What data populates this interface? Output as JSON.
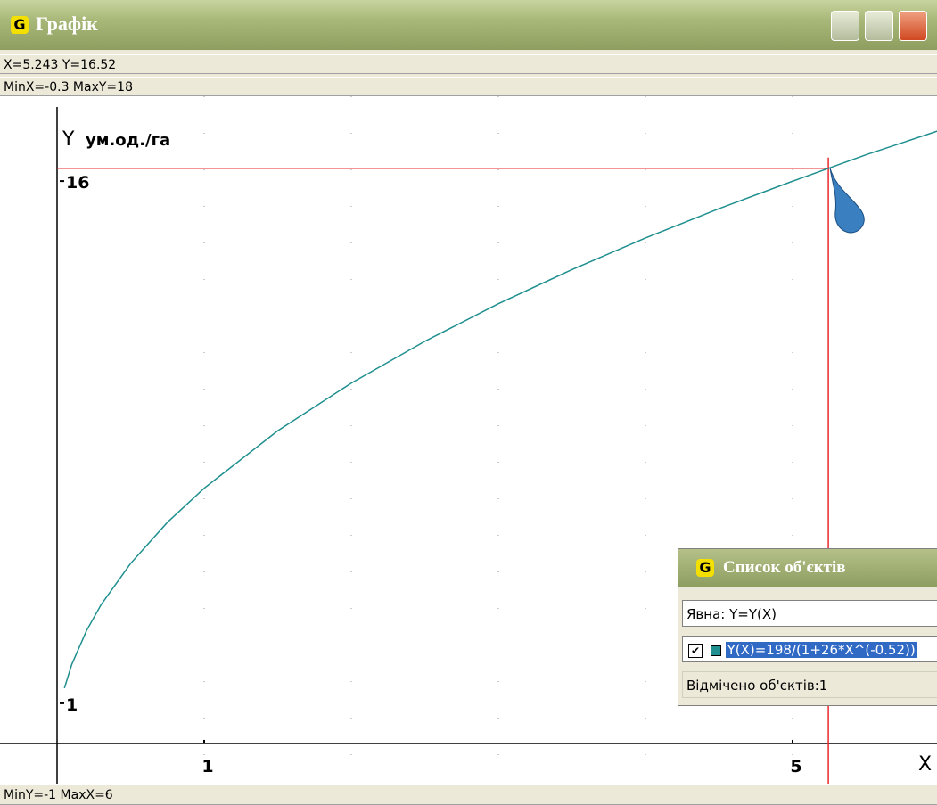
{
  "window": {
    "title": "Графік",
    "status_top": "X=5.243  Y=16.52",
    "status_range": "MinX=-0.3  MaxY=18",
    "status_bottom": "MinY=-1  MaxX=6"
  },
  "chart_data": {
    "type": "line",
    "x_label": "X",
    "y_label": "Y",
    "y_unit": "ум.од./га",
    "x": [
      0.05,
      0.1,
      0.2,
      0.3,
      0.5,
      0.75,
      1,
      1.5,
      2,
      2.5,
      3,
      3.5,
      4,
      4.5,
      5,
      5.5,
      6
    ],
    "series": [
      {
        "name": "Y(X)=198/(1+26*X^(-0.52))",
        "color": "#1f8f8f",
        "values": [
          1.59,
          2.27,
          3.24,
          3.99,
          5.17,
          6.35,
          7.33,
          8.98,
          10.35,
          11.55,
          12.63,
          13.61,
          14.52,
          15.36,
          16.15,
          16.91,
          17.61
        ]
      }
    ],
    "xlim": [
      -0.3,
      6
    ],
    "ylim": [
      -1,
      18
    ],
    "xticks": [
      1,
      5
    ],
    "yticks": [
      1,
      16
    ],
    "grid_step": 1,
    "crosshair": {
      "x": 5.243,
      "y": 16.52,
      "color": "#e8282c"
    }
  },
  "objects_window": {
    "title": "Список об'єктів",
    "type_field": "Явна: Y=Y(X)",
    "status": "Відмічено об'єктів:1"
  }
}
